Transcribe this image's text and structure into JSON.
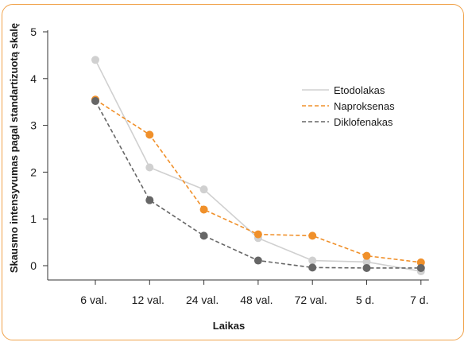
{
  "chart_data": {
    "type": "line",
    "xlabel": "Laikas",
    "ylabel": "Skausmo intensyvumas pagal standartizuotą skalę",
    "categories": [
      "6 val.",
      "12 val.",
      "24 val.",
      "48 val.",
      "72 val.",
      "5 d.",
      "7 d."
    ],
    "ylim": [
      0,
      5
    ],
    "yticks": [
      0,
      1,
      2,
      3,
      4,
      5
    ],
    "grid": false,
    "legend_position": "right",
    "series": [
      {
        "name": "Etodolakas",
        "color": "#d0d0d0",
        "dashed": false,
        "values": [
          4.4,
          2.1,
          1.63,
          0.59,
          0.11,
          0.08,
          -0.12
        ]
      },
      {
        "name": "Naproksenas",
        "color": "#f0902a",
        "dashed": true,
        "values": [
          3.55,
          2.8,
          1.2,
          0.67,
          0.64,
          0.21,
          0.07
        ]
      },
      {
        "name": "Diklofenakas",
        "color": "#666666",
        "dashed": true,
        "values": [
          3.52,
          1.4,
          0.64,
          0.11,
          -0.04,
          -0.05,
          -0.05
        ]
      }
    ]
  }
}
